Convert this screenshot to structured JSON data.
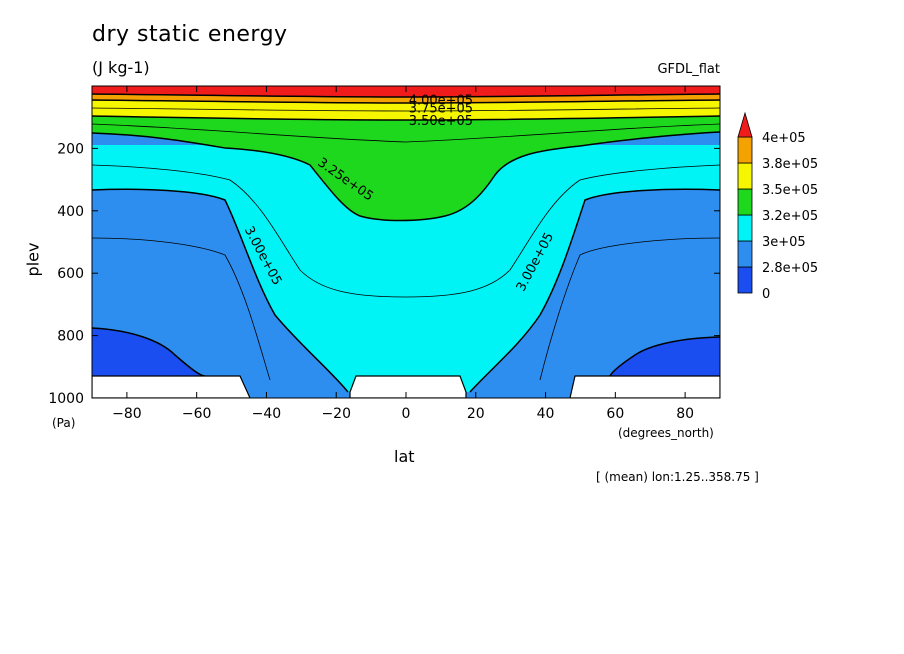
{
  "chart_data": {
    "type": "contour",
    "title": "dry static energy",
    "units": "(J kg-1)",
    "model": "GFDL_flat",
    "xlabel": "lat",
    "ylabel": "plev",
    "x_unit": "(degrees_north)",
    "y_unit": "(Pa)",
    "note": "[ (mean) lon:1.25..358.75 ]",
    "xlim": [
      -90,
      90
    ],
    "ylim": [
      1000,
      0
    ],
    "x_ticks": [
      -80,
      -60,
      -40,
      -20,
      0,
      20,
      40,
      60,
      80
    ],
    "y_ticks": [
      200,
      400,
      600,
      800,
      1000
    ],
    "levels": [
      {
        "label": "0",
        "color": "#1b4ef0"
      },
      {
        "label": "2.8e+05",
        "color": "#2e8ef0"
      },
      {
        "label": "3e+05",
        "color": "#00f4f6"
      },
      {
        "label": "3.2e+05",
        "color": "#1ed81e"
      },
      {
        "label": "3.5e+05",
        "color": "#f6f600"
      },
      {
        "label": "3.8e+05",
        "color": "#f4a200"
      },
      {
        "label": "4e+05",
        "color": "#f01c1c"
      }
    ],
    "contour_labels": [
      {
        "text": "4.00e+05",
        "lat": 10,
        "plev": 60
      },
      {
        "text": "3.75e+05",
        "lat": 10,
        "plev": 85
      },
      {
        "text": "3.50e+05",
        "lat": 10,
        "plev": 125
      },
      {
        "text": "3.25e+05",
        "lat": -18,
        "plev": 310
      },
      {
        "text": "3.00e+05",
        "lat": -42,
        "plev": 550
      },
      {
        "text": "3.00e+05",
        "lat": 38,
        "plev": 570
      }
    ]
  }
}
